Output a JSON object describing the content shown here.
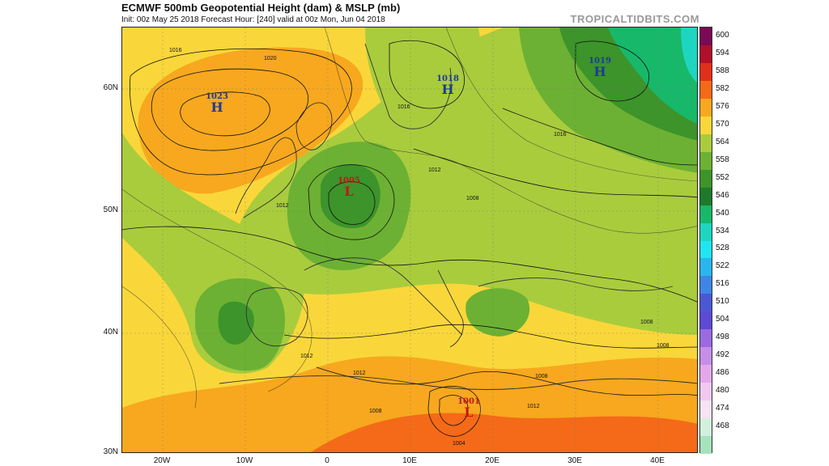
{
  "header": {
    "title": "ECMWF 500mb Geopotential Height (dam) & MSLP (mb)",
    "subtitle": "Init: 00z May 25 2018   Forecast Hour: [240]   valid at 00z Mon, Jun 04 2018",
    "brand": "TROPICALTIDBITS.COM"
  },
  "map": {
    "lat_labels": [
      "60N",
      "50N",
      "40N",
      "30N"
    ],
    "lon_labels": [
      "20W",
      "10W",
      "0",
      "10E",
      "20E",
      "30E",
      "40E"
    ],
    "pressure_centers": [
      {
        "symbol": "H",
        "value": "1023"
      },
      {
        "symbol": "H",
        "value": "1018"
      },
      {
        "symbol": "H",
        "value": "1019"
      },
      {
        "symbol": "L",
        "value": "1005"
      },
      {
        "symbol": "L",
        "value": "1001"
      }
    ],
    "isobar_labels": [
      "1016",
      "1020",
      "1016",
      "1012",
      "1012",
      "1008",
      "1016",
      "1012",
      "1008",
      "1012",
      "1008",
      "1008",
      "1004",
      "1008",
      "1012"
    ]
  },
  "colorbar": {
    "labels": [
      "600",
      "594",
      "588",
      "582",
      "576",
      "570",
      "564",
      "558",
      "552",
      "546",
      "540",
      "534",
      "528",
      "522",
      "516",
      "510",
      "504",
      "498",
      "492",
      "486",
      "480",
      "474",
      "468"
    ],
    "colors": [
      "#7a0a55",
      "#b0102a",
      "#e0301a",
      "#f46a18",
      "#f7a81e",
      "#f9d73a",
      "#a9cc3d",
      "#6cb133",
      "#3c942a",
      "#1e7a2a",
      "#17b86a",
      "#1ed6c0",
      "#1fe6f2",
      "#29b6ee",
      "#3e86e6",
      "#4a58d6",
      "#5d4ad6",
      "#9b6ae0",
      "#c68ee8",
      "#e4a8ea",
      "#f1c8f0",
      "#f6e3f4",
      "#d2f0de",
      "#a6e3bd"
    ]
  }
}
